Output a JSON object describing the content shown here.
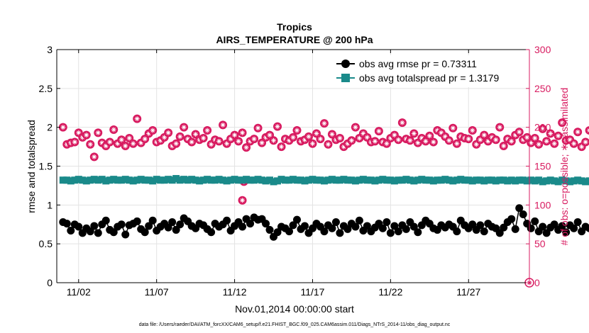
{
  "chart_data": {
    "type": "line",
    "title": "Tropics",
    "subtitle": "AIRS_TEMPERATURE @ 200 hPa",
    "xlabel": "Nov.01,2014 00:00:00 start",
    "ylabel": "rmse and totalspread",
    "ylabel_right": "# of obs: o=possible; ∗=assimilated",
    "footer": "data file: /Users/raeder/DAI/ATM_forcXX/CAM6_setup/f.e21.FHIST_BGC.f09_025.CAM6assim.011/Diags_NTrS_2014-11/obs_diag_output.nc",
    "xlim": [
      0.6,
      30.9
    ],
    "ylim": [
      0,
      3
    ],
    "ylim_right": [
      0,
      300
    ],
    "grid": true,
    "legend_position": "top-right",
    "x_ticks": [
      {
        "value": 2,
        "label": "11/02"
      },
      {
        "value": 7,
        "label": "11/07"
      },
      {
        "value": 12,
        "label": "11/12"
      },
      {
        "value": 17,
        "label": "11/17"
      },
      {
        "value": 22,
        "label": "11/22"
      },
      {
        "value": 27,
        "label": "11/27"
      }
    ],
    "y_ticks": [
      {
        "value": 0,
        "label": "0"
      },
      {
        "value": 0.5,
        "label": "0.5"
      },
      {
        "value": 1,
        "label": "1"
      },
      {
        "value": 1.5,
        "label": "1.5"
      },
      {
        "value": 2,
        "label": "2"
      },
      {
        "value": 2.5,
        "label": "2.5"
      },
      {
        "value": 3,
        "label": "3"
      }
    ],
    "y_ticks_right": [
      {
        "value": 0,
        "label": "0"
      },
      {
        "value": 50,
        "label": "50"
      },
      {
        "value": 100,
        "label": "100"
      },
      {
        "value": 150,
        "label": "150"
      },
      {
        "value": 200,
        "label": "200"
      },
      {
        "value": 250,
        "label": "250"
      },
      {
        "value": 300,
        "label": "300"
      }
    ],
    "series": [
      {
        "name": "obs avg rmse",
        "legend_label": "obs avg rmse pr = 0.73311",
        "color": "#000000",
        "marker": "circle",
        "axis": "left",
        "x_start": 1.0,
        "x_step": 0.25,
        "values": [
          0.78,
          0.76,
          0.67,
          0.75,
          0.72,
          0.64,
          0.7,
          0.66,
          0.73,
          0.64,
          0.75,
          0.8,
          0.68,
          0.65,
          0.72,
          0.75,
          0.62,
          0.74,
          0.76,
          0.79,
          0.69,
          0.65,
          0.73,
          0.8,
          0.67,
          0.72,
          0.76,
          0.71,
          0.78,
          0.68,
          0.75,
          0.83,
          0.79,
          0.73,
          0.7,
          0.76,
          0.74,
          0.69,
          0.65,
          0.76,
          0.72,
          0.75,
          0.8,
          0.67,
          0.73,
          0.78,
          0.72,
          0.82,
          0.76,
          0.84,
          0.81,
          0.82,
          0.76,
          0.68,
          0.59,
          0.65,
          0.72,
          0.7,
          0.66,
          0.74,
          0.81,
          0.69,
          0.73,
          0.64,
          0.7,
          0.76,
          0.72,
          0.66,
          0.74,
          0.7,
          0.78,
          0.64,
          0.73,
          0.69,
          0.76,
          0.72,
          0.8,
          0.67,
          0.73,
          0.66,
          0.71,
          0.76,
          0.7,
          0.78,
          0.64,
          0.73,
          0.66,
          0.74,
          0.69,
          0.78,
          0.72,
          0.65,
          0.74,
          0.8,
          0.76,
          0.7,
          0.68,
          0.74,
          0.71,
          0.75,
          0.72,
          0.66,
          0.8,
          0.74,
          0.7,
          0.75,
          0.68,
          0.74,
          0.66,
          0.76,
          0.72,
          0.7,
          0.64,
          0.71,
          0.78,
          0.82,
          0.69,
          0.96,
          0.88,
          0.76,
          0.7,
          0.79,
          0.66,
          0.72,
          0.64,
          0.71,
          0.75,
          0.68,
          0.73,
          0.65,
          0.74,
          0.7,
          0.78,
          0.66,
          0.72,
          0.7,
          0.82,
          0.75,
          0.67,
          0.74,
          0.8,
          0.68,
          0.72,
          0.69,
          0.76,
          0.65,
          0.73,
          0.7,
          0.78,
          0.74,
          0.82,
          0.75,
          0.82,
          0.81,
          0.69
        ]
      },
      {
        "name": "obs avg totalspread",
        "legend_label": "obs avg totalspread pr = 1.3179",
        "color": "#1a8a8a",
        "marker": "square",
        "axis": "left",
        "x_start": 1.0,
        "x_step": 0.25,
        "values": [
          1.32,
          1.32,
          1.31,
          1.32,
          1.33,
          1.32,
          1.31,
          1.32,
          1.33,
          1.32,
          1.33,
          1.31,
          1.32,
          1.33,
          1.32,
          1.32,
          1.33,
          1.32,
          1.31,
          1.32,
          1.33,
          1.32,
          1.32,
          1.31,
          1.33,
          1.32,
          1.32,
          1.33,
          1.32,
          1.34,
          1.32,
          1.33,
          1.32,
          1.33,
          1.32,
          1.31,
          1.32,
          1.33,
          1.32,
          1.32,
          1.33,
          1.32,
          1.31,
          1.32,
          1.33,
          1.32,
          1.32,
          1.33,
          1.32,
          1.32,
          1.33,
          1.32,
          1.31,
          1.32,
          1.3,
          1.31,
          1.33,
          1.32,
          1.32,
          1.33,
          1.32,
          1.32,
          1.31,
          1.32,
          1.33,
          1.32,
          1.32,
          1.31,
          1.32,
          1.33,
          1.32,
          1.32,
          1.33,
          1.32,
          1.32,
          1.31,
          1.32,
          1.33,
          1.32,
          1.32,
          1.31,
          1.32,
          1.33,
          1.32,
          1.32,
          1.31,
          1.32,
          1.32,
          1.33,
          1.32,
          1.31,
          1.32,
          1.33,
          1.32,
          1.32,
          1.31,
          1.32,
          1.32,
          1.33,
          1.32,
          1.31,
          1.32,
          1.33,
          1.32,
          1.32,
          1.31,
          1.32,
          1.32,
          1.31,
          1.32,
          1.32,
          1.31,
          1.32,
          1.32,
          1.31,
          1.32,
          1.31,
          1.32,
          1.32,
          1.31,
          1.32,
          1.31,
          1.32,
          1.3,
          1.31,
          1.32,
          1.31,
          1.3,
          1.32,
          1.31,
          1.3,
          1.31,
          1.32,
          1.31,
          1.3,
          1.31,
          1.3,
          1.31,
          1.3,
          1.29,
          1.31,
          1.3,
          1.29,
          1.3,
          1.31,
          1.3,
          1.29,
          1.3,
          1.31,
          1.3,
          1.29,
          1.3,
          1.29,
          1.3,
          1.29
        ]
      },
      {
        "name": "obs possible / assimilated",
        "color": "#d81b60",
        "marker": "circle-star",
        "axis": "right",
        "x_start": 1.0,
        "x_step": 0.25,
        "values": [
          200,
          178,
          180,
          181,
          193,
          187,
          190,
          178,
          162,
          193,
          180,
          176,
          181,
          197,
          179,
          184,
          176,
          186,
          179,
          211,
          180,
          185,
          192,
          196,
          181,
          183,
          187,
          193,
          176,
          179,
          188,
          200,
          185,
          181,
          191,
          184,
          186,
          196,
          178,
          184,
          182,
          203,
          179,
          185,
          190,
          182,
          193,
          174,
          182,
          185,
          199,
          180,
          187,
          190,
          183,
          201,
          175,
          185,
          183,
          187,
          196,
          182,
          184,
          188,
          179,
          192,
          185,
          205,
          178,
          191,
          184,
          186,
          175,
          179,
          183,
          200,
          186,
          192,
          187,
          181,
          182,
          195,
          181,
          179,
          186,
          190,
          184,
          206,
          185,
          183,
          192,
          180,
          186,
          182,
          189,
          181,
          196,
          193,
          188,
          183,
          199,
          179,
          188,
          186,
          185,
          196,
          178,
          184,
          190,
          182,
          187,
          184,
          200,
          176,
          185,
          182,
          190,
          194,
          184,
          187,
          180,
          186,
          178,
          198,
          182,
          192,
          179,
          189,
          206,
          183,
          184,
          179,
          194,
          175,
          181,
          196,
          178,
          182,
          201,
          184,
          177,
          183,
          180,
          186,
          199,
          175,
          182,
          198,
          190,
          180,
          187,
          176,
          182,
          185,
          179,
          189,
          196,
          178,
          184,
          187,
          210,
          181,
          183,
          196,
          171,
          178,
          183,
          186,
          192,
          194,
          175,
          186,
          186,
          179,
          187,
          207,
          172,
          184,
          181,
          180
        ]
      },
      {
        "name": "outlier obs count",
        "color": "#d81b60",
        "marker": "circle-star",
        "axis": "right",
        "x": [
          12.5,
          12.6
        ],
        "values": [
          106,
          130
        ]
      }
    ]
  }
}
